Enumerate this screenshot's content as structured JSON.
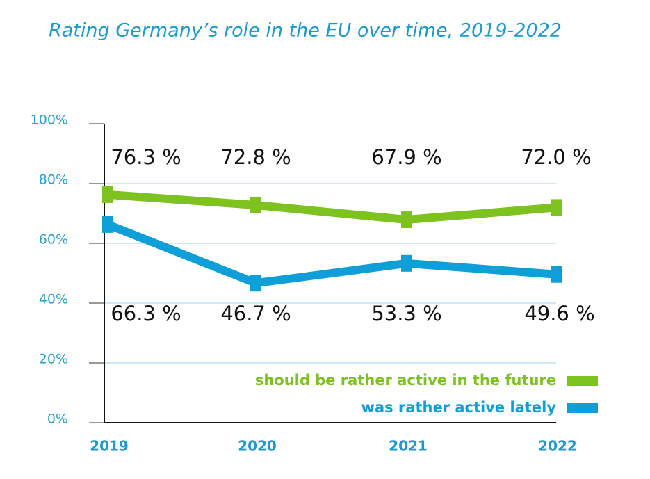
{
  "chart_data": {
    "type": "line",
    "title": "Rating Germany’s role in the EU over time, 2019-2022",
    "categories": [
      "2019",
      "2020",
      "2021",
      "2022"
    ],
    "series": [
      {
        "name": "should be rather active in the future",
        "color": "#7dc21e",
        "values": [
          76.3,
          72.8,
          67.9,
          72.0
        ],
        "value_labels": [
          "76.3 %",
          "72.8 %",
          "67.9 %",
          "72.0 %"
        ]
      },
      {
        "name": "was rather active lately",
        "color": "#0f9fd8",
        "values": [
          66.3,
          46.7,
          53.3,
          49.6
        ],
        "value_labels": [
          "66.3 %",
          "46.7 %",
          "53.3 %",
          "49.6 %"
        ]
      }
    ],
    "ylim": [
      0,
      100
    ],
    "yticks": [
      {
        "value": 0,
        "label": "0%"
      },
      {
        "value": 20,
        "label": "20%"
      },
      {
        "value": 40,
        "label": "40%"
      },
      {
        "value": 60,
        "label": "60%"
      },
      {
        "value": 80,
        "label": "80%"
      },
      {
        "value": 100,
        "label": "100%"
      }
    ],
    "grid": true,
    "legend": "lower right"
  }
}
